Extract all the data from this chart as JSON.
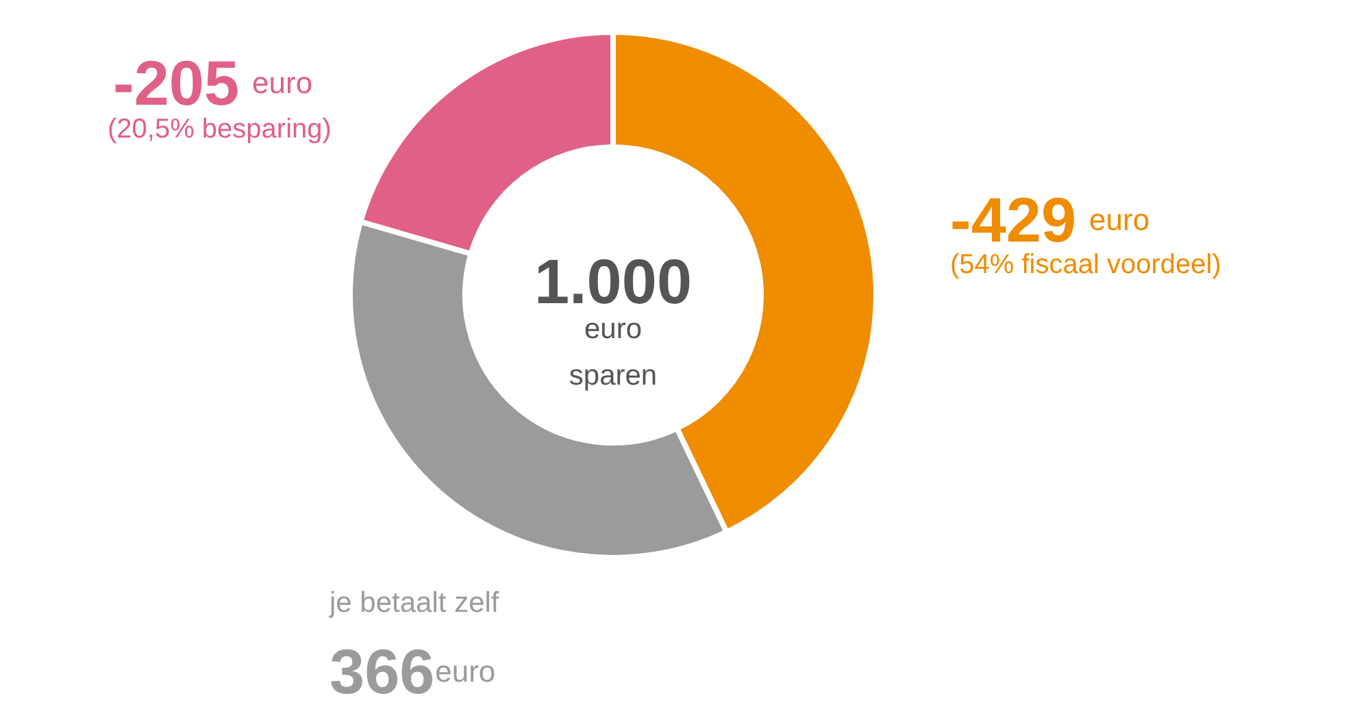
{
  "chart_data": {
    "type": "donut",
    "title": "1.000",
    "subtitle": "euro sparen",
    "categories": [
      null,
      "je betaalt zelf",
      null
    ],
    "values": [
      429,
      366,
      205
    ],
    "colors": [
      "#ef8c00",
      "#9b9b9b",
      "#e06086"
    ],
    "value_labels": [
      null,
      "366",
      null
    ],
    "annotations": [
      "-429",
      "euro",
      "(54% fiscaal voordeel)",
      "euro",
      "-205",
      "euro",
      "(20,5% besparing)"
    ]
  }
}
